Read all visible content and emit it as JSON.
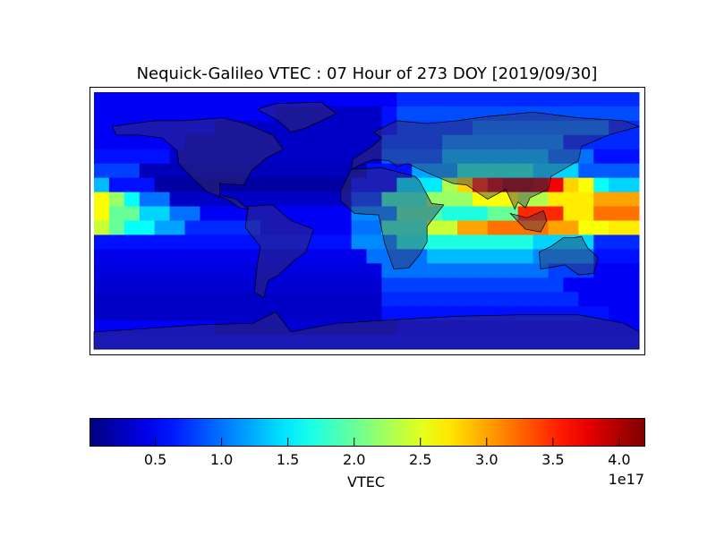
{
  "chart_data": {
    "type": "heatmap",
    "title": "Nequick-Galileo VTEC : 07 Hour of 273 DOY [2019/09/30]",
    "x_range_lon": [
      -180,
      180
    ],
    "y_range_lat": [
      90,
      -90
    ],
    "cell_size_deg": 10,
    "colormap": "jet",
    "color_range": [
      0.01,
      4.19
    ],
    "values_note_unit": "1e17",
    "rows": [
      [
        0.5,
        0.5,
        0.5,
        0.5,
        0.5,
        0.5,
        0.5,
        0.5,
        0.5,
        0.5,
        0.5,
        0.5,
        0.5,
        0.5,
        0.5,
        0.5,
        0.5,
        0.5,
        0.5,
        0.5,
        0.7,
        0.7,
        0.7,
        0.7,
        0.7,
        0.7,
        0.7,
        0.7,
        0.7,
        0.7,
        0.7,
        0.7,
        0.7,
        0.7,
        0.7,
        0.7
      ],
      [
        0.5,
        0.5,
        0.5,
        0.5,
        0.5,
        0.5,
        0.5,
        0.5,
        0.5,
        0.5,
        0.5,
        0.5,
        0.3,
        0.3,
        0.3,
        0.3,
        0.3,
        0.3,
        0.3,
        0.6,
        0.85,
        0.85,
        0.85,
        0.85,
        0.85,
        0.85,
        0.85,
        0.85,
        0.85,
        0.85,
        0.85,
        0.85,
        0.85,
        0.85,
        0.85,
        0.85
      ],
      [
        0.5,
        0.5,
        0.5,
        0.5,
        0.5,
        0.5,
        0.5,
        0.5,
        0.3,
        0.3,
        0.3,
        0.3,
        0.3,
        0.3,
        0.3,
        0.3,
        0.3,
        0.3,
        0.3,
        0.6,
        0.8,
        0.8,
        0.8,
        0.8,
        0.8,
        1.0,
        1.0,
        1.0,
        1.0,
        1.0,
        1.0,
        1.0,
        1.0,
        1.0,
        0.7,
        0.7
      ],
      [
        0.5,
        0.5,
        0.5,
        0.5,
        0.5,
        0.5,
        0.3,
        0.3,
        0.3,
        0.3,
        0.3,
        0.3,
        0.3,
        0.3,
        0.3,
        0.3,
        0.3,
        0.3,
        0.3,
        0.8,
        0.8,
        0.8,
        0.8,
        1.1,
        1.1,
        1.1,
        1.1,
        1.1,
        1.1,
        1.1,
        1.1,
        0.7,
        0.7,
        0.7,
        0.7,
        0.7
      ],
      [
        0.6,
        0.6,
        0.6,
        0.6,
        0.6,
        0.3,
        0.3,
        0.3,
        0.3,
        0.3,
        0.3,
        0.3,
        0.3,
        0.3,
        0.3,
        0.3,
        0.3,
        0.3,
        0.3,
        0.9,
        0.9,
        0.9,
        0.9,
        1.3,
        1.3,
        1.3,
        1.3,
        1.3,
        1.3,
        1.3,
        1.0,
        1.0,
        1.0,
        0.6,
        0.6,
        0.6
      ],
      [
        0.8,
        0.8,
        0.8,
        0.25,
        0.25,
        0.25,
        0.25,
        0.25,
        0.25,
        0.25,
        0.25,
        0.25,
        0.25,
        0.25,
        0.25,
        0.25,
        0.25,
        0.25,
        0.6,
        0.6,
        0.6,
        1.2,
        1.2,
        1.2,
        1.7,
        1.7,
        1.7,
        1.7,
        1.7,
        1.4,
        1.4,
        1.4,
        0.9,
        0.9,
        0.9,
        0.9
      ],
      [
        1.3,
        0.6,
        0.6,
        0.6,
        0.15,
        0.15,
        0.15,
        0.15,
        0.15,
        0.15,
        0.15,
        0.15,
        0.15,
        0.15,
        0.15,
        0.15,
        0.15,
        0.6,
        0.6,
        0.6,
        1.5,
        1.5,
        1.5,
        2.3,
        2.8,
        3.5,
        3.9,
        4.1,
        4.1,
        4.0,
        3.7,
        2.8,
        2.6,
        1.6,
        1.4,
        1.4
      ],
      [
        2.6,
        2.2,
        1.6,
        1.0,
        1.0,
        0.3,
        0.3,
        0.3,
        0.3,
        0.3,
        0.3,
        0.3,
        0.3,
        0.3,
        0.3,
        0.3,
        0.3,
        0.8,
        0.8,
        1.8,
        1.8,
        1.8,
        2.2,
        2.2,
        2.2,
        2.6,
        2.6,
        2.6,
        2.3,
        2.3,
        2.7,
        2.7,
        2.7,
        3.0,
        3.0,
        3.0
      ],
      [
        2.6,
        2.0,
        2.0,
        1.4,
        1.4,
        1.0,
        1.0,
        0.5,
        0.5,
        0.5,
        0.5,
        0.5,
        0.5,
        0.5,
        0.5,
        0.5,
        0.5,
        1.1,
        1.1,
        1.1,
        1.9,
        1.9,
        1.9,
        1.7,
        1.7,
        1.7,
        2.0,
        2.0,
        3.5,
        3.5,
        3.5,
        2.7,
        2.7,
        3.2,
        3.2,
        3.2
      ],
      [
        2.4,
        2.0,
        1.6,
        1.6,
        1.2,
        1.2,
        0.7,
        0.7,
        0.7,
        0.7,
        0.7,
        0.5,
        0.5,
        0.5,
        0.5,
        0.5,
        0.5,
        1.0,
        1.0,
        1.8,
        1.8,
        1.8,
        2.4,
        2.4,
        3.0,
        3.0,
        3.2,
        3.2,
        3.2,
        3.2,
        3.0,
        3.0,
        2.6,
        2.6,
        2.7,
        2.7
      ],
      [
        0.6,
        0.6,
        0.6,
        0.6,
        0.6,
        0.6,
        0.6,
        0.6,
        0.6,
        0.6,
        0.6,
        0.6,
        0.6,
        0.6,
        0.6,
        0.6,
        0.6,
        1.1,
        1.1,
        1.1,
        1.7,
        1.7,
        1.7,
        1.7,
        1.7,
        1.7,
        1.7,
        1.7,
        1.7,
        1.4,
        1.4,
        1.4,
        1.4,
        0.7,
        0.7,
        0.7
      ],
      [
        0.45,
        0.45,
        0.45,
        0.45,
        0.45,
        0.45,
        0.45,
        0.45,
        0.45,
        0.45,
        0.45,
        0.45,
        0.45,
        0.45,
        0.45,
        0.45,
        0.45,
        0.45,
        1.0,
        1.0,
        1.0,
        1.0,
        1.3,
        1.3,
        1.3,
        1.3,
        1.3,
        1.3,
        1.3,
        1.1,
        1.1,
        1.1,
        1.1,
        0.6,
        0.6,
        0.6
      ],
      [
        0.4,
        0.4,
        0.4,
        0.4,
        0.4,
        0.4,
        0.4,
        0.4,
        0.4,
        0.4,
        0.4,
        0.4,
        0.4,
        0.4,
        0.4,
        0.4,
        0.4,
        0.4,
        0.4,
        1.0,
        1.0,
        1.0,
        1.0,
        1.0,
        1.0,
        1.0,
        1.0,
        1.0,
        1.0,
        1.0,
        0.8,
        0.8,
        0.8,
        0.5,
        0.5,
        0.5
      ],
      [
        0.35,
        0.35,
        0.35,
        0.35,
        0.35,
        0.35,
        0.35,
        0.35,
        0.35,
        0.35,
        0.35,
        0.35,
        0.35,
        0.35,
        0.35,
        0.35,
        0.35,
        0.35,
        0.35,
        0.8,
        0.8,
        0.8,
        0.8,
        0.8,
        0.8,
        0.8,
        0.8,
        0.8,
        0.8,
        0.8,
        0.8,
        0.5,
        0.5,
        0.5,
        0.5,
        0.5
      ],
      [
        0.3,
        0.3,
        0.3,
        0.3,
        0.3,
        0.3,
        0.3,
        0.3,
        0.3,
        0.3,
        0.3,
        0.3,
        0.3,
        0.3,
        0.3,
        0.3,
        0.3,
        0.3,
        0.3,
        0.7,
        0.7,
        0.7,
        0.7,
        0.7,
        0.7,
        0.7,
        0.7,
        0.7,
        0.7,
        0.7,
        0.7,
        0.7,
        0.5,
        0.5,
        0.5,
        0.5
      ],
      [
        0.3,
        0.3,
        0.3,
        0.3,
        0.3,
        0.3,
        0.3,
        0.3,
        0.3,
        0.3,
        0.3,
        0.3,
        0.3,
        0.3,
        0.3,
        0.3,
        0.3,
        0.3,
        0.3,
        0.6,
        0.6,
        0.6,
        0.6,
        0.6,
        0.6,
        0.6,
        0.6,
        0.6,
        0.6,
        0.6,
        0.6,
        0.6,
        0.6,
        0.6,
        0.5,
        0.5
      ],
      [
        0.5,
        0.5,
        0.5,
        0.5,
        0.5,
        0.5,
        0.5,
        0.5,
        0.35,
        0.35,
        0.35,
        0.35,
        0.35,
        0.35,
        0.35,
        0.35,
        0.35,
        0.35,
        0.35,
        0.35,
        0.5,
        0.5,
        0.5,
        0.5,
        0.5,
        0.5,
        0.5,
        0.5,
        0.5,
        0.5,
        0.5,
        0.5,
        0.5,
        0.5,
        0.5,
        0.5
      ],
      [
        0.55,
        0.55,
        0.55,
        0.55,
        0.55,
        0.55,
        0.55,
        0.55,
        0.55,
        0.55,
        0.55,
        0.55,
        0.55,
        0.55,
        0.55,
        0.55,
        0.55,
        0.55,
        0.55,
        0.55,
        0.55,
        0.55,
        0.55,
        0.55,
        0.55,
        0.55,
        0.55,
        0.55,
        0.55,
        0.55,
        0.55,
        0.55,
        0.55,
        0.55,
        0.55,
        0.55
      ]
    ],
    "colorbar": {
      "label": "VTEC",
      "ticks": [
        0.5,
        1.0,
        1.5,
        2.0,
        2.5,
        3.0,
        3.5,
        4.0
      ],
      "tick_labels": [
        "0.5",
        "1.0",
        "1.5",
        "2.0",
        "2.5",
        "3.0",
        "3.5",
        "4.0"
      ],
      "offset_text": "1e17",
      "orientation": "horizontal"
    },
    "overlay": "coastlines and country borders",
    "grid": false
  }
}
